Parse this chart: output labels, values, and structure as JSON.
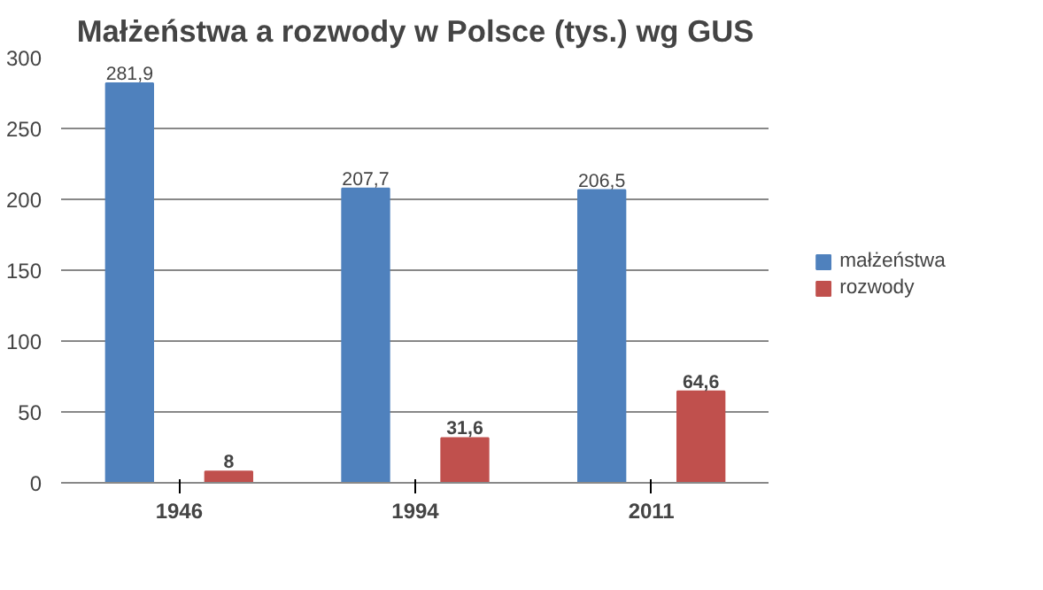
{
  "chart_data": {
    "type": "bar",
    "title": "Małżeństwa a rozwody w Polsce (tys.) wg GUS",
    "categories": [
      "1946",
      "1994",
      "2011"
    ],
    "series": [
      {
        "name": "małżeństwa",
        "color": "#4f81bd",
        "values": [
          281.9,
          207.7,
          206.5
        ],
        "value_labels": [
          "281,9",
          "207,7",
          "206,5"
        ]
      },
      {
        "name": "rozwody",
        "color": "#c0504d",
        "values": [
          8,
          31.6,
          64.6
        ],
        "value_labels": [
          "8",
          "31,6",
          "64,6"
        ]
      }
    ],
    "ylim": [
      0,
      300
    ],
    "yticks": [
      0,
      50,
      100,
      150,
      200,
      250,
      300
    ],
    "grid": "y",
    "legend": "right"
  }
}
